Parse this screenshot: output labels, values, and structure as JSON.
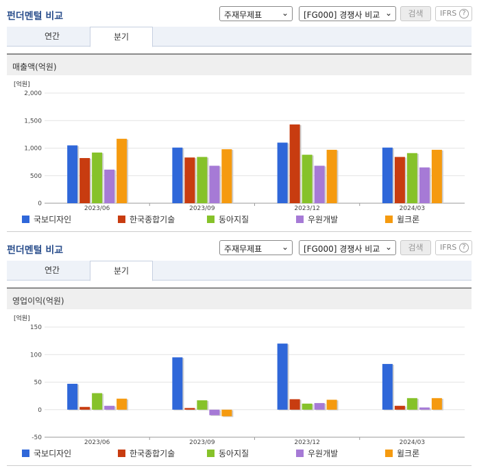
{
  "colors": {
    "국보디자인": "#2f67d9",
    "한국종합기술": "#c83c10",
    "동아지질": "#86c22a",
    "우원개발": "#a67ad6",
    "윌크론": "#f59a0f"
  },
  "panels": [
    {
      "title": "펀더멘털 비교",
      "select_a": "주재무제표",
      "select_b": "[FG000] 경쟁사 비교",
      "search_label": "검색",
      "ifrs_label": "IFRS",
      "help_icon": "?",
      "tabs": [
        "연간",
        "분기"
      ],
      "active_tab": "분기",
      "metric_label": "매출액(억원)"
    },
    {
      "title": "펀더멘털 비교",
      "select_a": "주재무제표",
      "select_b": "[FG000] 경쟁사 비교",
      "search_label": "검색",
      "ifrs_label": "IFRS",
      "help_icon": "?",
      "tabs": [
        "연간",
        "분기"
      ],
      "active_tab": "분기",
      "metric_label": "영업이익(억원)"
    }
  ],
  "chart_data": [
    {
      "type": "bar",
      "unit_label": "[억원]",
      "categories": [
        "2023/06",
        "2023/09",
        "2023/12",
        "2024/03"
      ],
      "ylim": [
        0,
        2000
      ],
      "yticks": [
        "0",
        "500",
        "1,000",
        "1,500",
        "2,000"
      ],
      "ytick_values": [
        0,
        500,
        1000,
        1500,
        2000
      ],
      "series": [
        {
          "name": "국보디자인",
          "values": [
            1050,
            1010,
            1100,
            1010
          ]
        },
        {
          "name": "한국종합기술",
          "values": [
            820,
            830,
            1430,
            840
          ]
        },
        {
          "name": "동아지질",
          "values": [
            920,
            840,
            880,
            910
          ]
        },
        {
          "name": "우원개발",
          "values": [
            610,
            680,
            680,
            650
          ]
        },
        {
          "name": "윌크론",
          "values": [
            1170,
            980,
            970,
            970
          ]
        }
      ],
      "legend_position": "bottom"
    },
    {
      "type": "bar",
      "unit_label": "[억원]",
      "categories": [
        "2023/06",
        "2023/09",
        "2023/12",
        "2024/03"
      ],
      "ylim": [
        -50,
        150
      ],
      "yticks": [
        "-50",
        "0",
        "50",
        "100",
        "150"
      ],
      "ytick_values": [
        -50,
        0,
        50,
        100,
        150
      ],
      "series": [
        {
          "name": "국보디자인",
          "values": [
            47,
            95,
            120,
            83
          ]
        },
        {
          "name": "한국종합기술",
          "values": [
            5,
            3,
            19,
            7
          ]
        },
        {
          "name": "동아지질",
          "values": [
            30,
            17,
            11,
            21
          ]
        },
        {
          "name": "우원개발",
          "values": [
            7,
            -10,
            12,
            4
          ]
        },
        {
          "name": "윌크론",
          "values": [
            20,
            -12,
            18,
            21
          ]
        }
      ],
      "legend_position": "bottom"
    }
  ]
}
